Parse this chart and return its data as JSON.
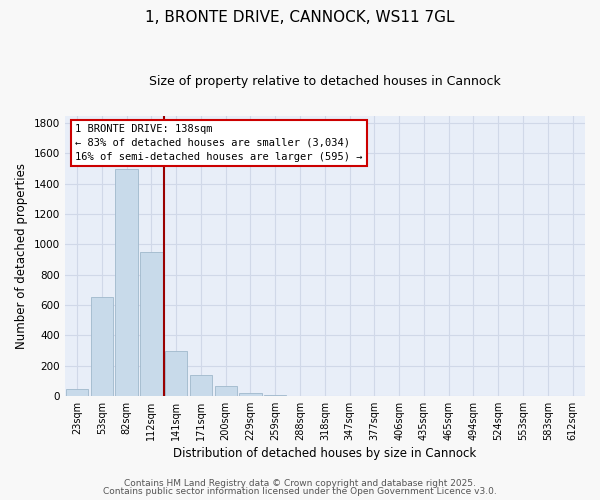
{
  "title": "1, BRONTE DRIVE, CANNOCK, WS11 7GL",
  "subtitle": "Size of property relative to detached houses in Cannock",
  "xlabel": "Distribution of detached houses by size in Cannock",
  "ylabel": "Number of detached properties",
  "categories": [
    "23sqm",
    "53sqm",
    "82sqm",
    "112sqm",
    "141sqm",
    "171sqm",
    "200sqm",
    "229sqm",
    "259sqm",
    "288sqm",
    "318sqm",
    "347sqm",
    "377sqm",
    "406sqm",
    "435sqm",
    "465sqm",
    "494sqm",
    "524sqm",
    "553sqm",
    "583sqm",
    "612sqm"
  ],
  "values": [
    45,
    655,
    1495,
    950,
    295,
    135,
    65,
    20,
    5,
    2,
    0,
    0,
    0,
    0,
    0,
    0,
    0,
    0,
    0,
    0,
    0
  ],
  "bar_color": "#c8daea",
  "bar_edge_color": "#a0b8cc",
  "marker_line_idx": 3.5,
  "annotation_line1": "1 BRONTE DRIVE: 138sqm",
  "annotation_line2": "← 83% of detached houses are smaller (3,034)",
  "annotation_line3": "16% of semi-detached houses are larger (595) →",
  "marker_color": "#990000",
  "annotation_box_facecolor": "#ffffff",
  "annotation_box_edgecolor": "#cc0000",
  "ylim": [
    0,
    1850
  ],
  "yticks": [
    0,
    200,
    400,
    600,
    800,
    1000,
    1200,
    1400,
    1600,
    1800
  ],
  "footer1": "Contains HM Land Registry data © Crown copyright and database right 2025.",
  "footer2": "Contains public sector information licensed under the Open Government Licence v3.0.",
  "fig_facecolor": "#f8f8f8",
  "ax_facecolor": "#e8eef8",
  "grid_color": "#d0d8e8",
  "title_fontsize": 11,
  "subtitle_fontsize": 9,
  "axis_label_fontsize": 8.5,
  "tick_fontsize": 7,
  "annot_fontsize": 7.5,
  "footer_fontsize": 6.5
}
